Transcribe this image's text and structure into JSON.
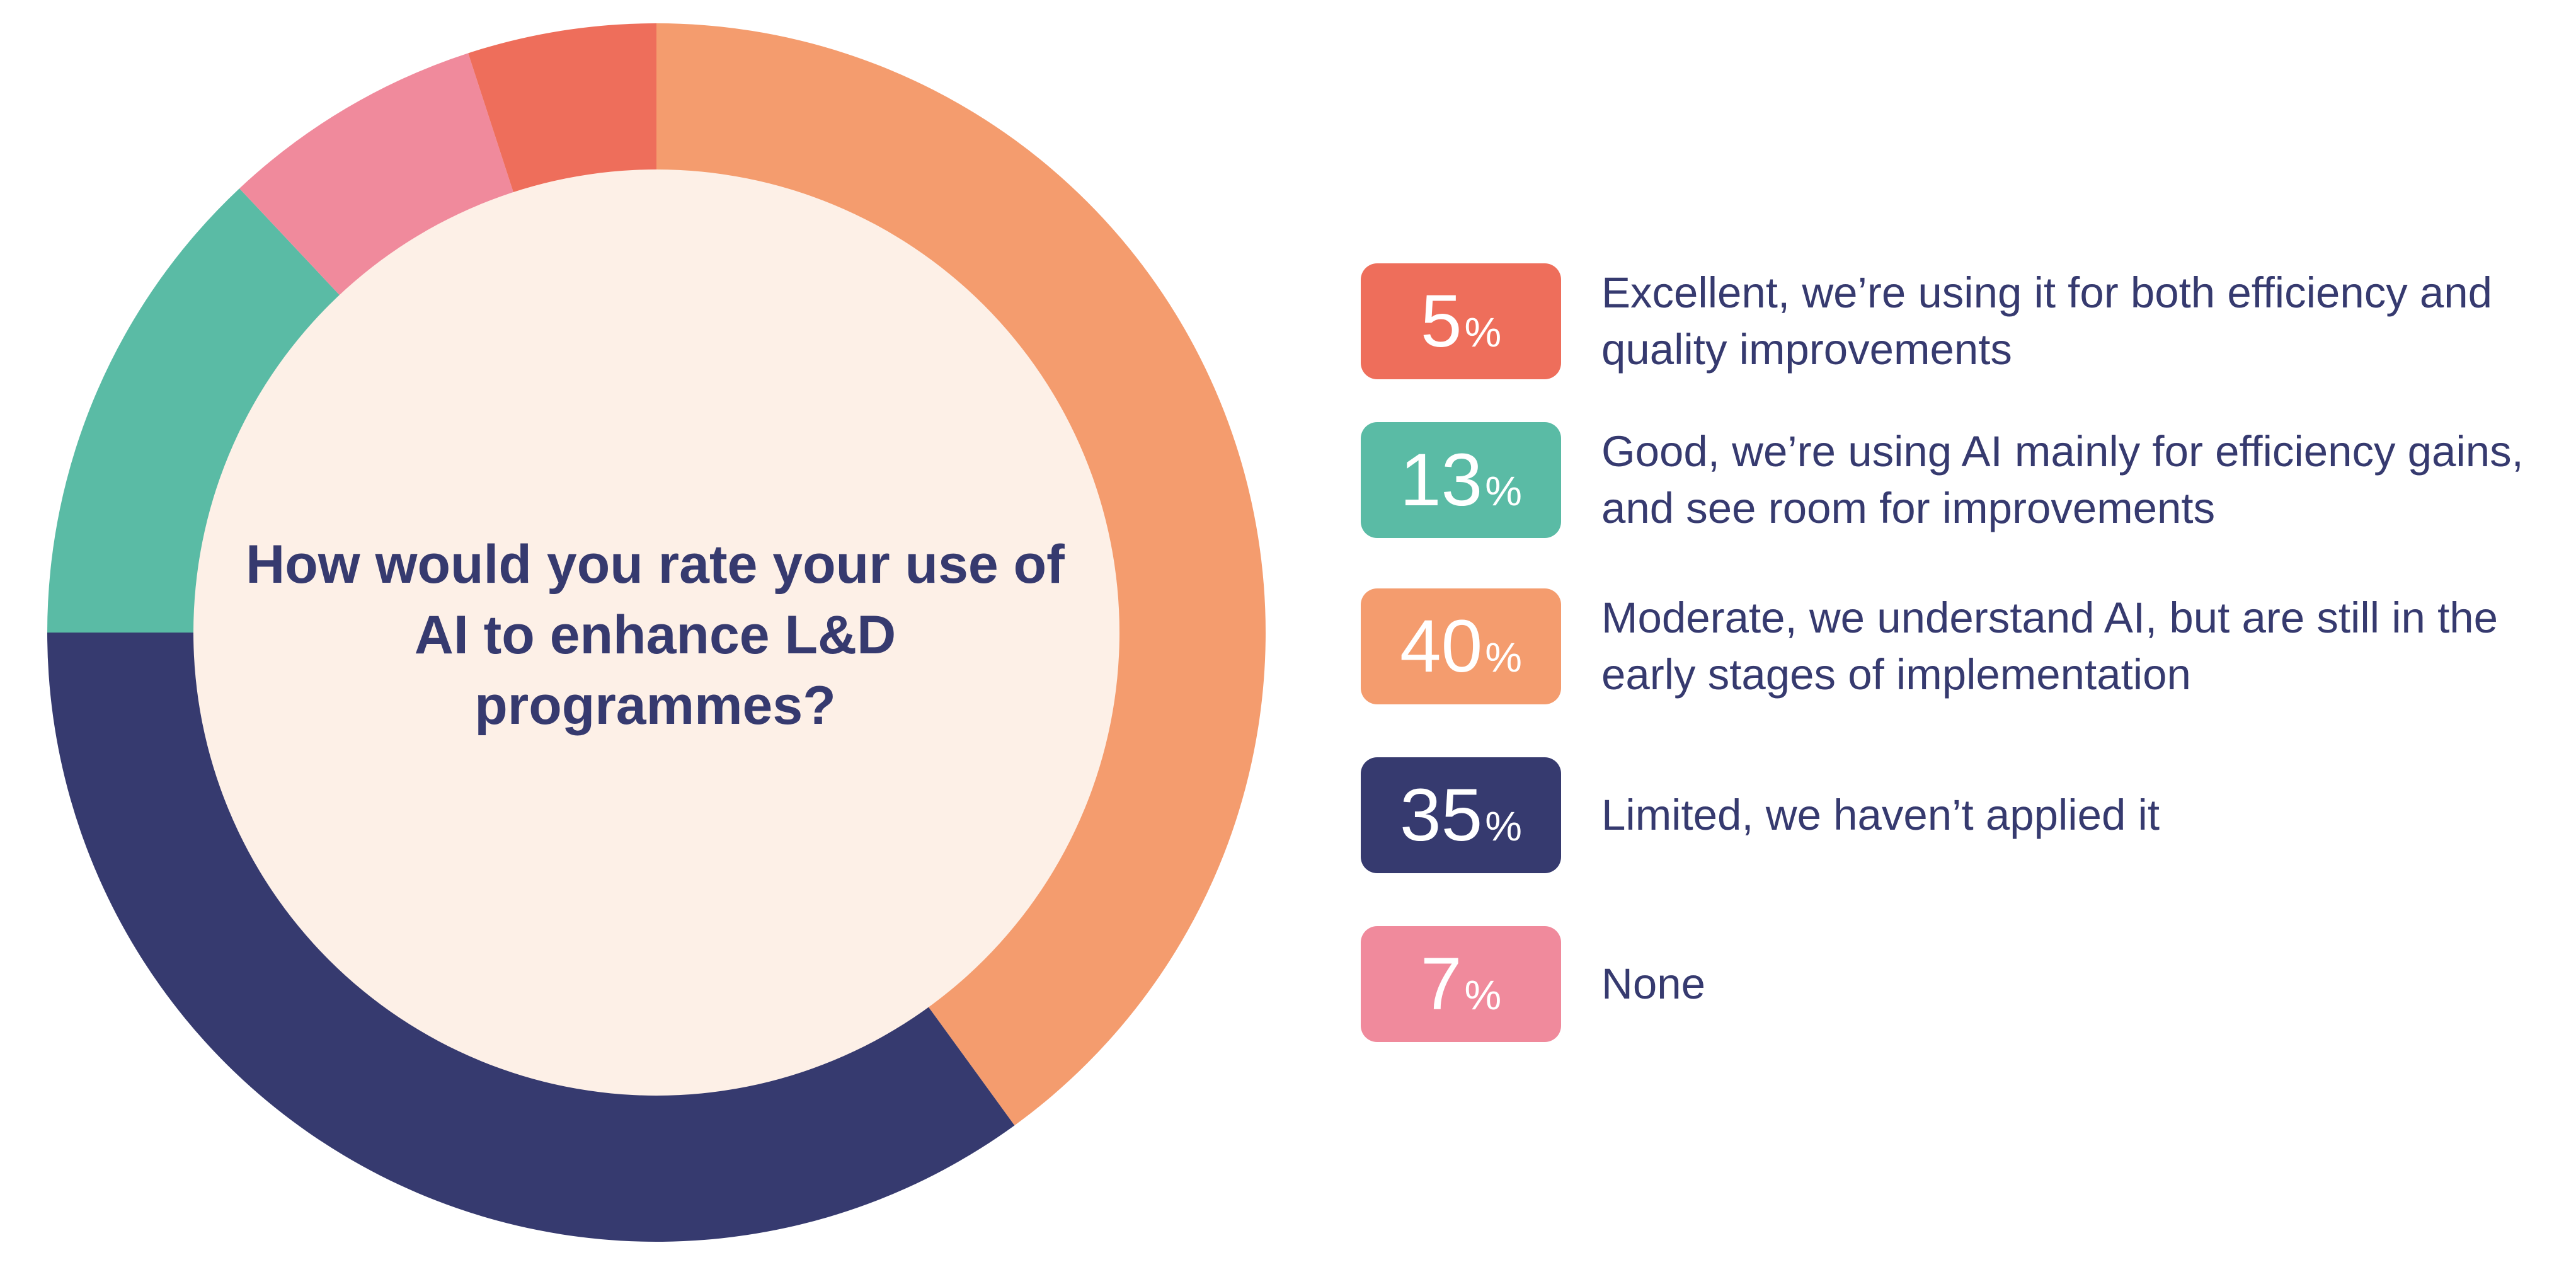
{
  "chart_data": {
    "type": "pie",
    "title": "How would you rate your use of AI to enhance L&D programmes?",
    "slices": [
      {
        "label": "Moderate, we understand AI, but are still in the early stages of implementation",
        "value": 40,
        "color": "#f49c6e"
      },
      {
        "label": "Limited, we haven’t applied it",
        "value": 35,
        "color": "#363a6f"
      },
      {
        "label": "Good, we’re using AI mainly for efficiency gains, and see room for improvements",
        "value": 13,
        "color": "#5abba5"
      },
      {
        "label": "None",
        "value": 7,
        "color": "#f08a9c"
      },
      {
        "label": "Excellent, we’re using it for both efficiency and quality improvements",
        "value": 5,
        "color": "#ee6e5b"
      }
    ],
    "center_fill": "#fdf0e7"
  },
  "legend": [
    {
      "value": "5",
      "unit": "%",
      "text": "Excellent, we’re using it for both efficiency and quality improvements",
      "color": "#ee6e5b"
    },
    {
      "value": "13",
      "unit": "%",
      "text": "Good, we’re using AI mainly for efficiency gains, and see room for improvements",
      "color": "#5abba5"
    },
    {
      "value": "40",
      "unit": "%",
      "text": "Moderate, we understand AI, but are still in the early stages of implementation",
      "color": "#f49c6e"
    },
    {
      "value": "35",
      "unit": "%",
      "text": "Limited, we haven’t applied it",
      "color": "#363a6f"
    },
    {
      "value": "7",
      "unit": "%",
      "text": "None",
      "color": "#f08a9c"
    }
  ]
}
